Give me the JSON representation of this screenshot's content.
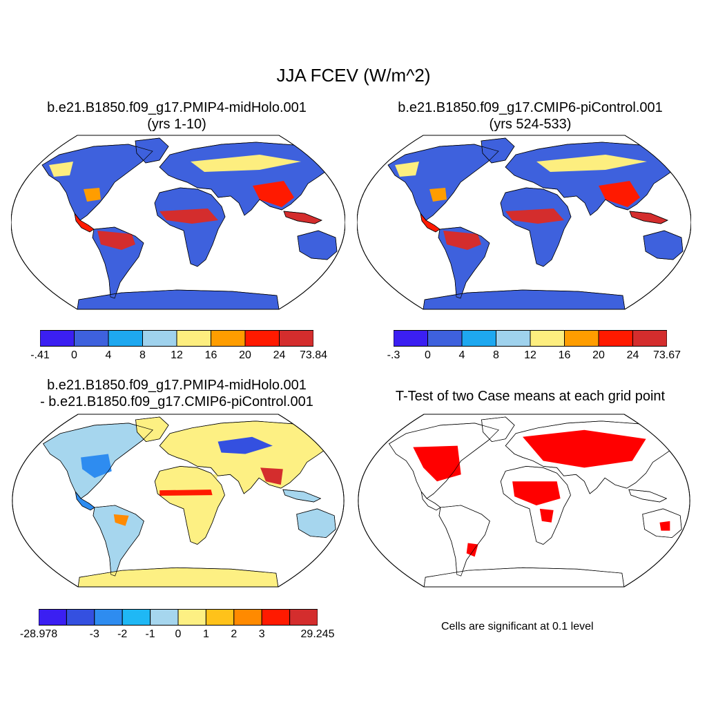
{
  "figure": {
    "title": "JJA FCEV (W/m^2)"
  },
  "panels": [
    {
      "title_line1": "b.e21.B1850.f09_g17.PMIP4-midHolo.001",
      "title_line2": "(yrs 1-10)"
    },
    {
      "title_line1": "b.e21.B1850.f09_g17.CMIP6-piControl.001",
      "title_line2": "(yrs 524-533)"
    },
    {
      "title_line1": "b.e21.B1850.f09_g17.PMIP4-midHolo.001",
      "title_line2": "- b.e21.B1850.f09_g17.CMIP6-piControl.001"
    },
    {
      "title_line1": "T-Test of two Case means at each grid point",
      "note": "Cells are significant at 0.1 level"
    }
  ],
  "colorbars": [
    {
      "colors": [
        "#3b1ff2",
        "#3e61dd",
        "#1ea8f0",
        "#9fd2ed",
        "#fdee7f",
        "#ff9d00",
        "#ff1a00",
        "#d42d2d"
      ],
      "labels": [
        "-.41",
        "0",
        "4",
        "8",
        "12",
        "16",
        "20",
        "24",
        "73.84"
      ]
    },
    {
      "colors": [
        "#3b1ff2",
        "#3e61dd",
        "#1ea8f0",
        "#9fd2ed",
        "#fdee7f",
        "#ff9d00",
        "#ff1a00",
        "#d42d2d"
      ],
      "labels": [
        "-.3",
        "0",
        "4",
        "8",
        "12",
        "16",
        "20",
        "24",
        "73.67"
      ]
    },
    {
      "colors": [
        "#3b1ff2",
        "#3450e0",
        "#2e8cf0",
        "#1fb8f5",
        "#a6d6ee",
        "#fdf083",
        "#ffc21a",
        "#ff8a00",
        "#ff1a00",
        "#d42d2d"
      ],
      "labels": [
        "-28.978",
        "",
        "-3",
        "-2",
        "-1",
        "0",
        "1",
        "2",
        "3",
        "",
        "29.245"
      ]
    }
  ],
  "colors": {
    "land_low": "#3e61dd",
    "land_mid": "#fdee7f",
    "land_high": "#d42d2d",
    "significant": "#ff0000",
    "coast": "#000000"
  }
}
